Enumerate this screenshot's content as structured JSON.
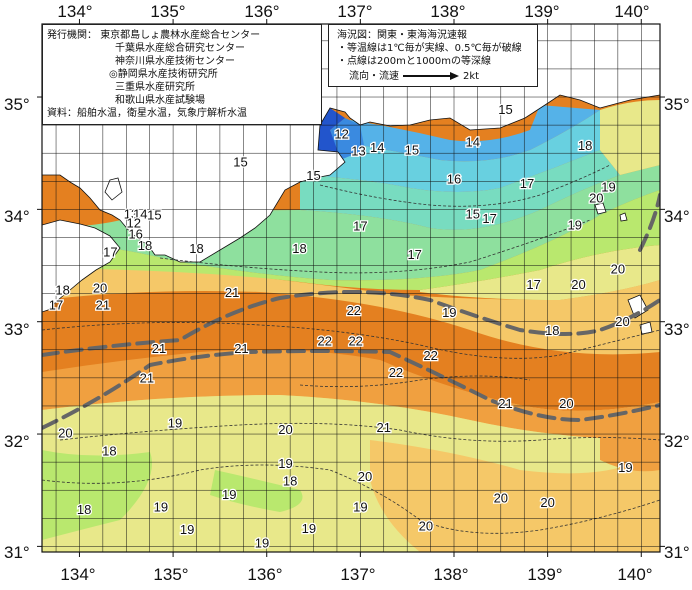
{
  "map": {
    "lon_ticks": [
      "134°",
      "135°",
      "136°",
      "137°",
      "138°",
      "139°",
      "140°"
    ],
    "lat_ticks": [
      "35°",
      "34°",
      "33°",
      "32°",
      "31°"
    ],
    "lat_ticks_right": [
      "35°",
      "34°",
      "33°",
      "32°",
      "31°"
    ],
    "isotherm_labels": [
      {
        "text": "12",
        "lon": 136.8,
        "lat": 34.67
      },
      {
        "text": "13",
        "lon": 136.98,
        "lat": 34.52
      },
      {
        "text": "14",
        "lon": 137.18,
        "lat": 34.55
      },
      {
        "text": "15",
        "lon": 137.55,
        "lat": 34.53
      },
      {
        "text": "15",
        "lon": 138.55,
        "lat": 34.89
      },
      {
        "text": "14",
        "lon": 138.2,
        "lat": 34.6
      },
      {
        "text": "16",
        "lon": 138.0,
        "lat": 34.27
      },
      {
        "text": "15",
        "lon": 136.5,
        "lat": 34.3
      },
      {
        "text": "15",
        "lon": 138.2,
        "lat": 33.96
      },
      {
        "text": "17",
        "lon": 138.38,
        "lat": 33.92
      },
      {
        "text": "17",
        "lon": 137.0,
        "lat": 33.85
      },
      {
        "text": "17",
        "lon": 137.58,
        "lat": 33.6
      },
      {
        "text": "17",
        "lon": 138.78,
        "lat": 34.23
      },
      {
        "text": "18",
        "lon": 139.4,
        "lat": 34.57
      },
      {
        "text": "19",
        "lon": 139.65,
        "lat": 34.2
      },
      {
        "text": "20",
        "lon": 139.52,
        "lat": 34.1
      },
      {
        "text": "19",
        "lon": 139.29,
        "lat": 33.86
      },
      {
        "text": "17",
        "lon": 138.85,
        "lat": 33.33
      },
      {
        "text": "20",
        "lon": 139.33,
        "lat": 33.33
      },
      {
        "text": "20",
        "lon": 139.75,
        "lat": 33.47
      },
      {
        "text": "20",
        "lon": 139.8,
        "lat": 33.0
      },
      {
        "text": "18",
        "lon": 139.05,
        "lat": 32.92
      },
      {
        "text": "19",
        "lon": 137.95,
        "lat": 33.08
      },
      {
        "text": "18",
        "lon": 136.35,
        "lat": 33.65
      },
      {
        "text": "18",
        "lon": 135.25,
        "lat": 33.65
      },
      {
        "text": "17",
        "lon": 134.33,
        "lat": 33.62
      },
      {
        "text": "18",
        "lon": 134.7,
        "lat": 33.68
      },
      {
        "text": "16",
        "lon": 134.6,
        "lat": 33.78
      },
      {
        "text": "13",
        "lon": 134.55,
        "lat": 33.96
      },
      {
        "text": "14",
        "lon": 134.65,
        "lat": 33.96
      },
      {
        "text": "15",
        "lon": 134.8,
        "lat": 33.95
      },
      {
        "text": "15",
        "lon": 135.72,
        "lat": 34.42
      },
      {
        "text": "12",
        "lon": 134.58,
        "lat": 33.88
      },
      {
        "text": "18",
        "lon": 133.82,
        "lat": 33.28
      },
      {
        "text": "17",
        "lon": 133.75,
        "lat": 33.15
      },
      {
        "text": "20",
        "lon": 134.22,
        "lat": 33.3
      },
      {
        "text": "21",
        "lon": 134.25,
        "lat": 33.15
      },
      {
        "text": "21",
        "lon": 135.63,
        "lat": 33.26
      },
      {
        "text": "22",
        "lon": 136.93,
        "lat": 33.1
      },
      {
        "text": "22",
        "lon": 136.62,
        "lat": 32.83
      },
      {
        "text": "22",
        "lon": 136.95,
        "lat": 32.83
      },
      {
        "text": "22",
        "lon": 137.75,
        "lat": 32.7
      },
      {
        "text": "22",
        "lon": 137.38,
        "lat": 32.55
      },
      {
        "text": "21",
        "lon": 134.85,
        "lat": 32.76
      },
      {
        "text": "21",
        "lon": 135.73,
        "lat": 32.76
      },
      {
        "text": "21",
        "lon": 134.72,
        "lat": 32.5
      },
      {
        "text": "21",
        "lon": 138.55,
        "lat": 32.27
      },
      {
        "text": "20",
        "lon": 139.2,
        "lat": 32.27
      },
      {
        "text": "21",
        "lon": 137.25,
        "lat": 32.06
      },
      {
        "text": "20",
        "lon": 136.2,
        "lat": 32.04
      },
      {
        "text": "20",
        "lon": 133.85,
        "lat": 32.01
      },
      {
        "text": "19",
        "lon": 135.02,
        "lat": 32.1
      },
      {
        "text": "18",
        "lon": 134.32,
        "lat": 31.85
      },
      {
        "text": "19",
        "lon": 136.2,
        "lat": 31.74
      },
      {
        "text": "18",
        "lon": 136.25,
        "lat": 31.58
      },
      {
        "text": "20",
        "lon": 137.05,
        "lat": 31.62
      },
      {
        "text": "19",
        "lon": 135.6,
        "lat": 31.46
      },
      {
        "text": "20",
        "lon": 138.5,
        "lat": 31.43
      },
      {
        "text": "20",
        "lon": 139.0,
        "lat": 31.39
      },
      {
        "text": "19",
        "lon": 139.83,
        "lat": 31.7
      },
      {
        "text": "18",
        "lon": 134.05,
        "lat": 31.33
      },
      {
        "text": "19",
        "lon": 134.87,
        "lat": 31.35
      },
      {
        "text": "19",
        "lon": 137.0,
        "lat": 31.35
      },
      {
        "text": "19",
        "lon": 135.15,
        "lat": 31.15
      },
      {
        "text": "19",
        "lon": 136.45,
        "lat": 31.16
      },
      {
        "text": "20",
        "lon": 137.7,
        "lat": 31.18
      },
      {
        "text": "19",
        "lon": 135.95,
        "lat": 31.03
      }
    ],
    "colors": {
      "c12": "#2255cc",
      "c13": "#3a8ae0",
      "c14": "#55b2e8",
      "c15": "#68d0e0",
      "c16": "#78dcc0",
      "c17": "#8ee09e",
      "c18": "#b9e86e",
      "c19": "#e8e88a",
      "c20": "#f5c868",
      "c21": "#f0a040",
      "c22": "#e48020",
      "land": "#ffffff",
      "grid": "#111111",
      "current": "#666666"
    }
  },
  "info_box": {
    "publisher_label": "発行機関：",
    "publishers": [
      "東京都島しょ農林水産総合センター",
      "千葉県水産総合研究センター",
      "神奈川県水産技術センター",
      "◎静岡県水産技術研究所",
      "三重県水産研究所",
      "和歌山県水産試験場"
    ],
    "sources": "資料：船舶水温，衛星水温，気象庁解析水温"
  },
  "legend_box": {
    "title": "海況図：関東・東海海況速報",
    "notes": [
      "・等温線は1℃毎が実線、0.5℃毎が破線",
      "・点線は200mと1000mの等深線"
    ],
    "arrow_label": "流向・流速",
    "arrow_value": "2kt"
  }
}
